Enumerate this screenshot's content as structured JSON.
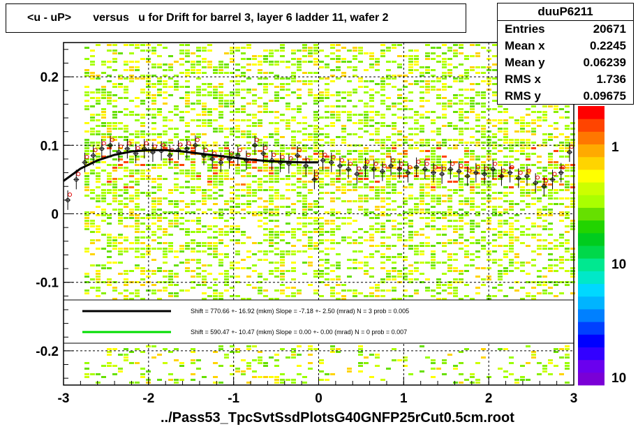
{
  "title": "<u - uP>       versus   u for Drift for barrel 3, layer 6 ladder 11, wafer 2",
  "stats": {
    "name": "duuP6211",
    "rows": [
      {
        "label": "Entries",
        "value": "20671"
      },
      {
        "label": "Mean x",
        "value": "0.2245"
      },
      {
        "label": "Mean y",
        "value": "0.06239"
      },
      {
        "label": "RMS x",
        "value": "1.736"
      },
      {
        "label": "RMS y",
        "value": "0.09675"
      }
    ]
  },
  "xlabel": "../Pass53_TpcSvtSsdPlotsG40GNFP25rCut0.5cm.root",
  "legend": [
    {
      "color": "#000000",
      "text": "Shift =   770.66 +- 16.92 (mkm) Slope =    -7.18 +- 2.50 (mrad)  N = 3 prob = 0.005"
    },
    {
      "color": "#00dd00",
      "text": "Shift =   590.47 +- 10.47 (mkm) Slope =     0.00 +- 0.00 (mrad)  N = 0 prob = 0.007"
    }
  ],
  "colors": {
    "palette": [
      "#7a00d6",
      "#6a00ee",
      "#3300ff",
      "#0000ff",
      "#0040ff",
      "#0080ff",
      "#00b4ff",
      "#00d8ff",
      "#00e8c8",
      "#00e890",
      "#00d84a",
      "#00cc1e",
      "#22d400",
      "#66e000",
      "#aaff00",
      "#ccff00",
      "#ffff00",
      "#ffd400",
      "#ffaa00",
      "#ff7700",
      "#ff4400",
      "#ff0000"
    ],
    "points": "#000000",
    "hollow": "#dd0000",
    "fit": "#000000"
  },
  "chart_data": {
    "type": "heatmap",
    "xlim": [
      -3,
      3
    ],
    "ylim": [
      -0.25,
      0.25
    ],
    "x_ticks": [
      -3,
      -2,
      -1,
      0,
      1,
      2,
      3
    ],
    "x_tick_labels": [
      "-3",
      "-2",
      "-1",
      "0",
      "1",
      "2",
      "3"
    ],
    "y_ticks": [
      -0.2,
      -0.1,
      0,
      0.1,
      0.2
    ],
    "y_tick_labels": [
      "-0.2",
      "-0.1",
      "0",
      "0.1",
      "0.2"
    ],
    "z_scale": "log",
    "z_tick_labels": [
      "1",
      "10",
      "10"
    ],
    "grid": true,
    "profile": {
      "x": [
        -2.95,
        -2.85,
        -2.75,
        -2.65,
        -2.55,
        -2.45,
        -2.35,
        -2.25,
        -2.15,
        -2.05,
        -1.95,
        -1.85,
        -1.75,
        -1.65,
        -1.55,
        -1.45,
        -1.35,
        -1.25,
        -1.15,
        -1.05,
        -0.95,
        -0.85,
        -0.75,
        -0.65,
        -0.55,
        -0.45,
        -0.35,
        -0.25,
        -0.15,
        -0.05,
        0.05,
        0.15,
        0.25,
        0.35,
        0.45,
        0.55,
        0.65,
        0.75,
        0.85,
        0.95,
        1.05,
        1.15,
        1.25,
        1.35,
        1.45,
        1.55,
        1.65,
        1.75,
        1.85,
        1.95,
        2.05,
        2.15,
        2.25,
        2.35,
        2.45,
        2.55,
        2.65,
        2.75,
        2.85,
        2.95
      ],
      "y": [
        0.02,
        0.05,
        0.075,
        0.085,
        0.095,
        0.1,
        0.09,
        0.095,
        0.088,
        0.095,
        0.09,
        0.092,
        0.085,
        0.093,
        0.095,
        0.1,
        0.085,
        0.08,
        0.075,
        0.08,
        0.085,
        0.078,
        0.1,
        0.088,
        0.078,
        0.075,
        0.073,
        0.085,
        0.07,
        0.05,
        0.078,
        0.075,
        0.07,
        0.065,
        0.058,
        0.068,
        0.065,
        0.062,
        0.07,
        0.065,
        0.06,
        0.068,
        0.065,
        0.06,
        0.058,
        0.065,
        0.062,
        0.055,
        0.06,
        0.058,
        0.065,
        0.055,
        0.06,
        0.052,
        0.055,
        0.045,
        0.04,
        0.05,
        0.06,
        0.09
      ]
    },
    "fit_line": {
      "x": [
        -3,
        -2.8,
        -2.6,
        -2.4,
        -2.2,
        -2.0,
        -1.8,
        -1.6,
        -1.4,
        -1.2,
        -1.0,
        -0.8,
        -0.6,
        -0.4,
        -0.2,
        0
      ],
      "y": [
        0.048,
        0.066,
        0.078,
        0.086,
        0.091,
        0.093,
        0.093,
        0.091,
        0.088,
        0.085,
        0.082,
        0.079,
        0.077,
        0.076,
        0.075,
        0.075
      ]
    }
  }
}
